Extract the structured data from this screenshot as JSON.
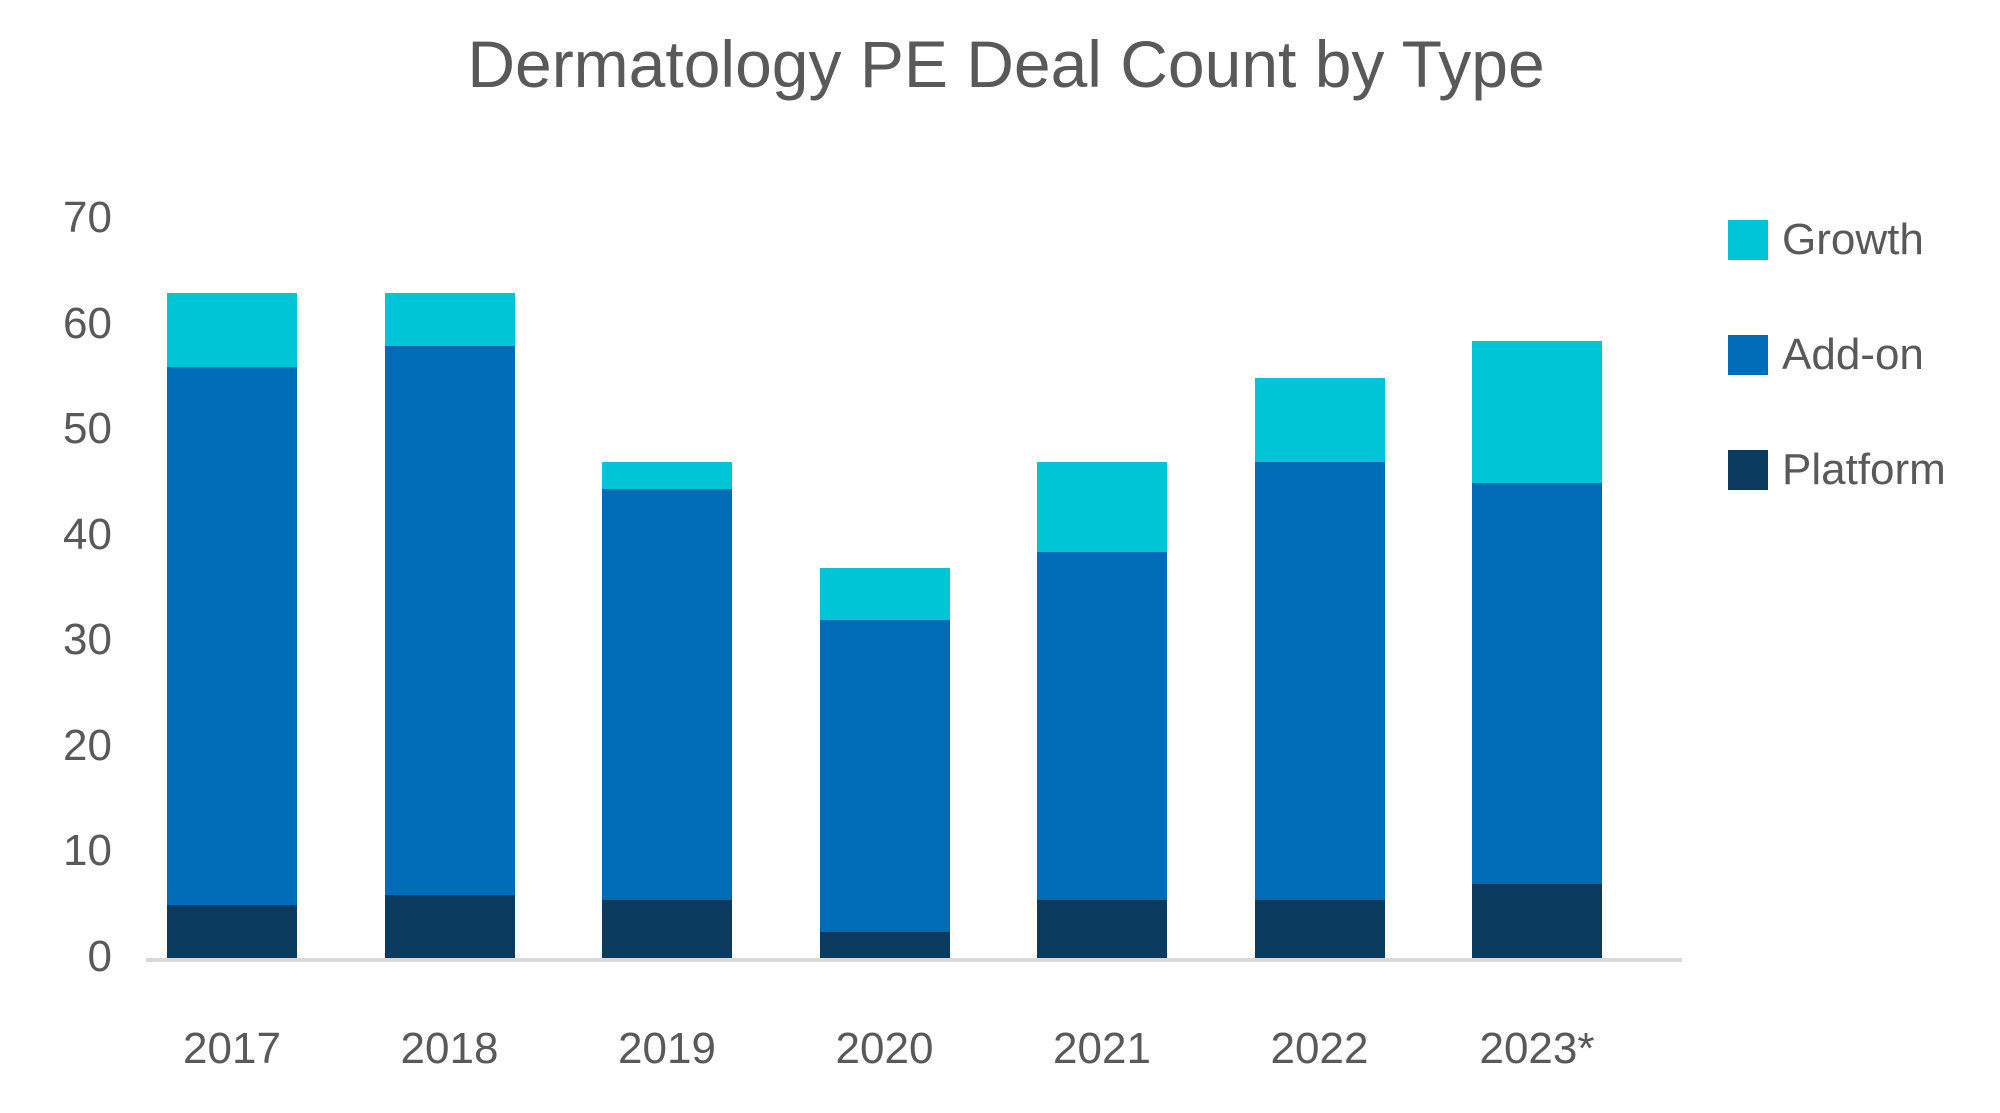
{
  "title": "Dermatology PE Deal Count by Type",
  "colors": {
    "growth": "#00C5D7",
    "addon": "#006BB6",
    "platform": "#0B3A5F",
    "axis_line": "#D9D9D9",
    "text": "#595959",
    "background": "#FFFFFF"
  },
  "chart_data": {
    "type": "bar",
    "stacked": true,
    "title": "Dermatology PE Deal Count by Type",
    "categories": [
      "2017",
      "2018",
      "2019",
      "2020",
      "2021",
      "2022",
      "2023*"
    ],
    "series": [
      {
        "name": "Platform",
        "color": "#0B3A5F",
        "values": [
          5,
          6,
          5.5,
          2.5,
          5.5,
          5.5,
          7
        ]
      },
      {
        "name": "Add-on",
        "color": "#006BB6",
        "values": [
          51,
          52,
          39,
          29.5,
          33,
          41.5,
          38
        ]
      },
      {
        "name": "Growth",
        "color": "#00C5D7",
        "values": [
          7,
          5,
          2.5,
          5,
          8.5,
          8,
          13.5
        ]
      }
    ],
    "totals": [
      63,
      63,
      47,
      37,
      47,
      55,
      58.5
    ],
    "xlabel": "",
    "ylabel": "",
    "ylim": [
      0,
      70
    ],
    "y_ticks": [
      0,
      10,
      20,
      30,
      40,
      50,
      60,
      70
    ],
    "grid": false,
    "legend_position": "right",
    "legend_order": [
      "Growth",
      "Add-on",
      "Platform"
    ]
  }
}
